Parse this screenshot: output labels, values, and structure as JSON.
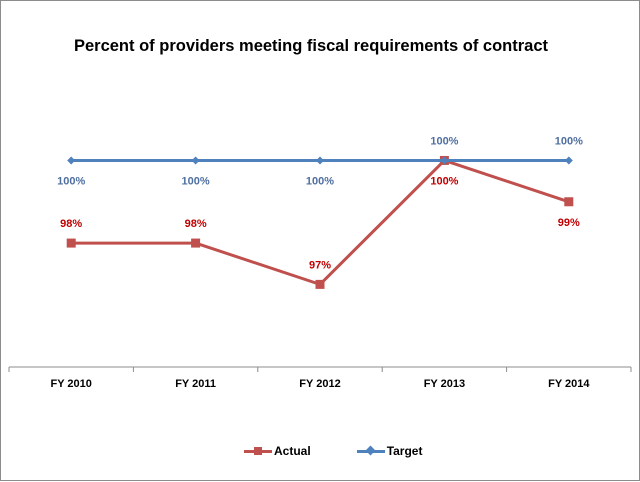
{
  "chart_data": {
    "type": "line",
    "title": "Percent of providers meeting fiscal requirements of contract",
    "xlabel": "",
    "ylabel": "",
    "categories": [
      "FY 2010",
      "FY 2011",
      "FY 2012",
      "FY 2013",
      "FY 2014"
    ],
    "ylim": [
      95,
      100.35
    ],
    "grid": false,
    "legend_position": "bottom",
    "series": [
      {
        "name": "Actual",
        "color": "#c0504d",
        "marker": "square",
        "label_placement": [
          "above",
          "above",
          "above",
          "below",
          "below"
        ],
        "values": [
          98,
          98,
          97,
          100,
          99
        ],
        "labels": [
          "98%",
          "98%",
          "97%",
          "100%",
          "99%"
        ]
      },
      {
        "name": "Target",
        "color": "#4f81bd",
        "marker": "diamond",
        "label_placement": [
          "below",
          "below",
          "below",
          "above",
          "above"
        ],
        "values": [
          100,
          100,
          100,
          100,
          100
        ],
        "labels": [
          "100%",
          "100%",
          "100%",
          "100%",
          "100%"
        ]
      }
    ]
  }
}
